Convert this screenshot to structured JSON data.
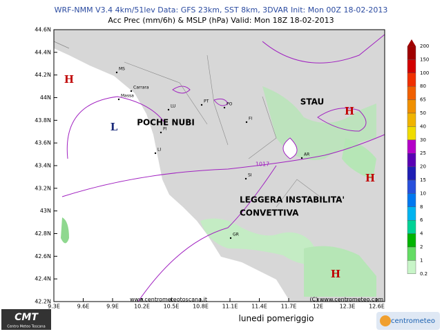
{
  "header": {
    "line1": "WRF-NMM V3.4 4km/51lev  Data: GFS 23km, SST 8km, 3DVAR  Init: Mon 00Z 18-02-2013",
    "line2": "Acc Prec (mm/6h) & MSLP (hPa)  Valid: Mon 18Z 18-02-2013"
  },
  "lat_labels": [
    "44.6N",
    "44.4N",
    "44.2N",
    "44N",
    "43.8N",
    "43.6N",
    "43.4N",
    "43.2N",
    "43N",
    "42.8N",
    "42.6N",
    "42.4N",
    "42.2N"
  ],
  "lon_labels": [
    "9.3E",
    "9.6E",
    "9.9E",
    "10.2E",
    "10.5E",
    "10.8E",
    "11.1E",
    "11.4E",
    "11.7E",
    "12E",
    "12.3E",
    "12.6E"
  ],
  "colorbar": {
    "labels": [
      "200",
      "150",
      "100",
      "80",
      "65",
      "50",
      "40",
      "30",
      "25",
      "20",
      "15",
      "10",
      "8",
      "6",
      "4",
      "2",
      "1",
      "0.2"
    ],
    "colors": [
      "#a00000",
      "#d20000",
      "#f03000",
      "#f06000",
      "#f09000",
      "#f0b400",
      "#f0dc00",
      "#b400c8",
      "#5a00b4",
      "#1e1eb4",
      "#2850dc",
      "#0078f0",
      "#00b4f0",
      "#00d296",
      "#00b400",
      "#64dc64",
      "#c8f5c8"
    ]
  },
  "annotations": {
    "stau": "STAU",
    "poche": "POCHE NUBI",
    "leggera": "LEGGERA INSTABILITA'",
    "convettiva": "CONVETTIVA",
    "isobar": "1017"
  },
  "pressure_centers": [
    {
      "label": "H"
    },
    {
      "label": "L"
    },
    {
      "label": "H"
    },
    {
      "label": "H"
    },
    {
      "label": "H"
    }
  ],
  "cities": [
    "MS",
    "Carrara",
    "Massa",
    "LU",
    "PT",
    "PO",
    "FI",
    "PI",
    "LI",
    "AR",
    "SI",
    "GR"
  ],
  "footer": {
    "site1": "www.centrometeotoscana.it",
    "site2": "(C) www.centrometeo.com",
    "caption": "lunedi pomeriggio",
    "logo": "CMT",
    "logo_sub": "Centro Meteo Toscana",
    "logo2": "centrometeo"
  }
}
